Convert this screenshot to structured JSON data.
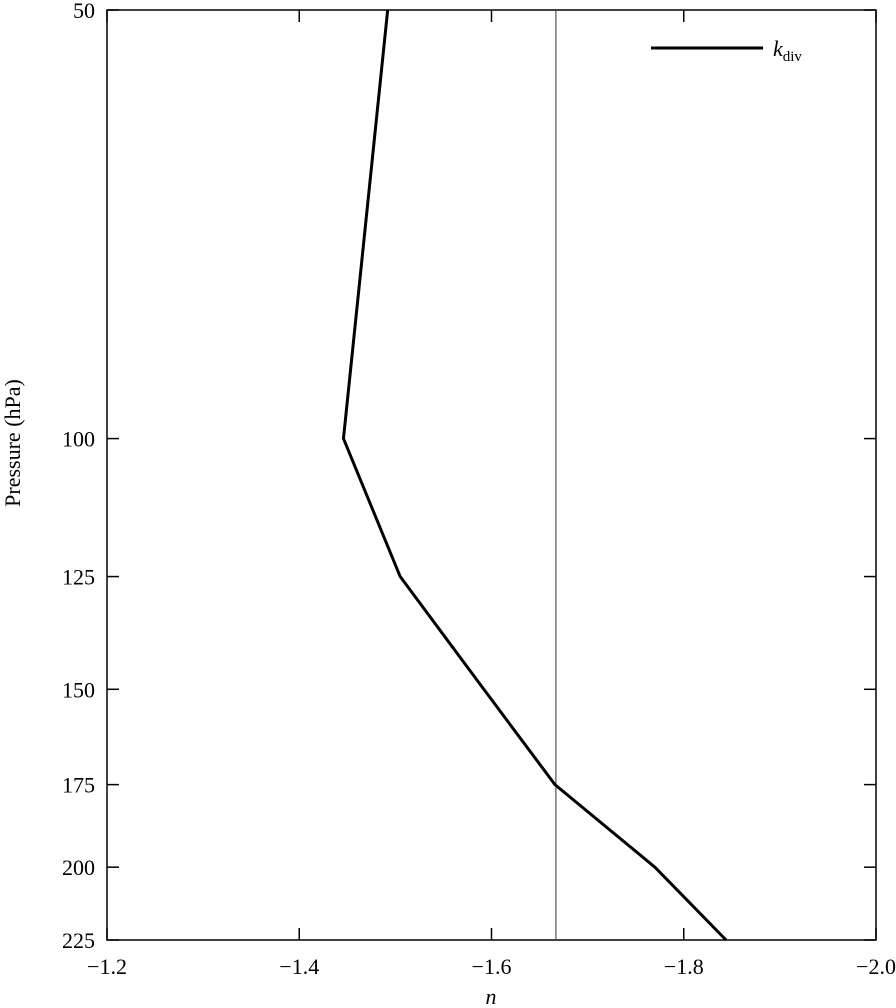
{
  "chart_data": {
    "type": "line",
    "x_label": "n",
    "y_label": "Pressure (hPa)",
    "y": [
      50,
      100,
      125,
      150,
      175,
      200,
      225
    ],
    "series": [
      {
        "name": "k",
        "name_subscript": "div",
        "color": "#000000",
        "values": [
          -1.492,
          -1.446,
          -1.505,
          -1.592,
          -1.666,
          -1.77,
          -1.844
        ]
      }
    ],
    "vline": -1.667,
    "vline_color": "#555555",
    "xlim": [
      -1.2,
      -2.0
    ],
    "xticks": [
      {
        "value": -1.2,
        "label": "−1.2"
      },
      {
        "value": -1.4,
        "label": "−1.4"
      },
      {
        "value": -1.6,
        "label": "−1.6"
      },
      {
        "value": -1.8,
        "label": "−1.8"
      },
      {
        "value": -2.0,
        "label": "−2.0"
      }
    ],
    "ylim": [
      225,
      50
    ],
    "ylog": true,
    "yticks": [
      50,
      100,
      125,
      150,
      175,
      200,
      225
    ],
    "legend": "upper right",
    "grid": false
  }
}
